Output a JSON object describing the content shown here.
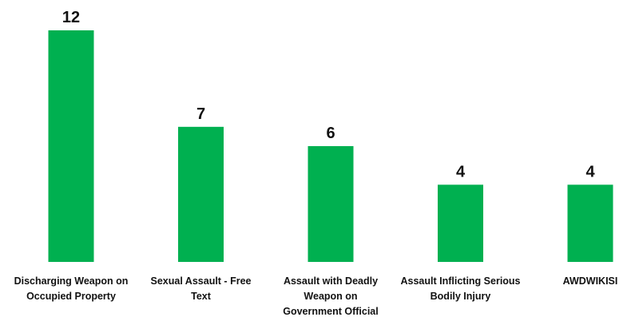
{
  "chart_data": {
    "type": "bar",
    "categories": [
      [
        "Discharging Weapon on",
        "Occupied Property"
      ],
      [
        "Sexual Assault - Free",
        "Text"
      ],
      [
        "Assault with Deadly",
        "Weapon on",
        "Government Official"
      ],
      [
        "Assault Inflicting Serious",
        "Bodily Injury"
      ],
      [
        "AWDWIKISI"
      ]
    ],
    "values": [
      12,
      7,
      6,
      4,
      4
    ],
    "value_labels": [
      "12",
      "7",
      "6",
      "4",
      "4"
    ],
    "ylim": [
      0,
      12
    ],
    "grid": false,
    "legend": "none",
    "bar_color": "#00b050"
  }
}
